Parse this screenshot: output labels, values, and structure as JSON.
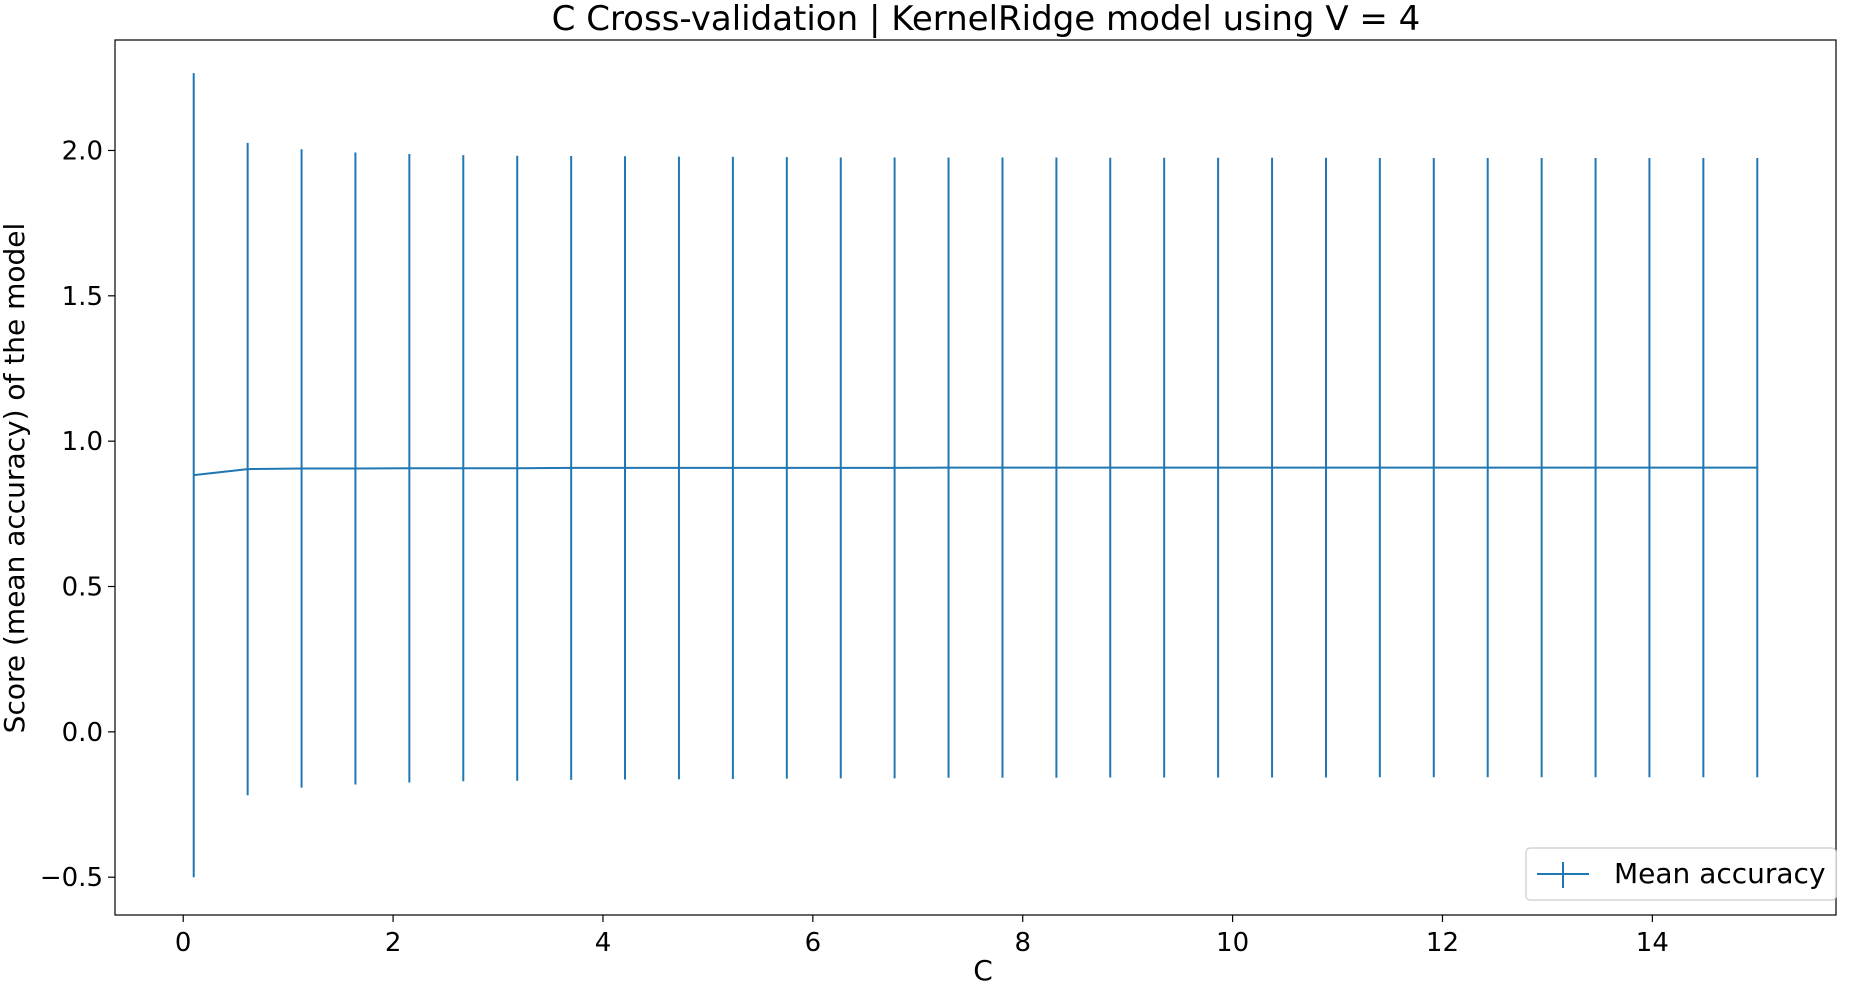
{
  "chart_data": {
    "type": "line",
    "title": "C Cross-validation | KernelRidge model using V = 4",
    "xlabel": "C",
    "ylabel": "Score (mean accuracy) of the model",
    "xlim": [
      -0.65,
      15.75
    ],
    "ylim": [
      -0.63,
      2.38
    ],
    "xticks": [
      0,
      2,
      4,
      6,
      8,
      10,
      12,
      14
    ],
    "xtick_labels": [
      "0",
      "2",
      "4",
      "6",
      "8",
      "10",
      "12",
      "14"
    ],
    "yticks": [
      -0.5,
      0.0,
      0.5,
      1.0,
      1.5,
      2.0
    ],
    "ytick_labels": [
      "−0.5",
      "0.0",
      "0.5",
      "1.0",
      "1.5",
      "2.0"
    ],
    "grid": false,
    "legend": {
      "position": "lower-right",
      "entries": [
        "Mean accuracy"
      ]
    },
    "color": "#1f77b4",
    "series": [
      {
        "name": "Mean accuracy",
        "x": [
          0.1,
          0.614,
          1.128,
          1.641,
          2.155,
          2.669,
          3.183,
          3.697,
          4.21,
          4.724,
          5.238,
          5.752,
          6.266,
          6.779,
          7.293,
          7.807,
          8.321,
          8.834,
          9.348,
          9.862,
          10.376,
          10.89,
          11.403,
          11.917,
          12.431,
          12.945,
          13.459,
          13.972,
          14.486,
          15.0
        ],
        "y": [
          0.883,
          0.904,
          0.906,
          0.906,
          0.907,
          0.907,
          0.907,
          0.908,
          0.908,
          0.908,
          0.908,
          0.908,
          0.908,
          0.908,
          0.909,
          0.909,
          0.909,
          0.909,
          0.909,
          0.909,
          0.909,
          0.909,
          0.909,
          0.909,
          0.909,
          0.909,
          0.909,
          0.909,
          0.909,
          0.909
        ],
        "yerr": [
          1.383,
          1.122,
          1.098,
          1.087,
          1.081,
          1.077,
          1.075,
          1.073,
          1.072,
          1.071,
          1.07,
          1.069,
          1.068,
          1.068,
          1.067,
          1.067,
          1.067,
          1.066,
          1.066,
          1.066,
          1.066,
          1.066,
          1.065,
          1.065,
          1.065,
          1.065,
          1.065,
          1.065,
          1.065,
          1.065
        ]
      }
    ]
  }
}
